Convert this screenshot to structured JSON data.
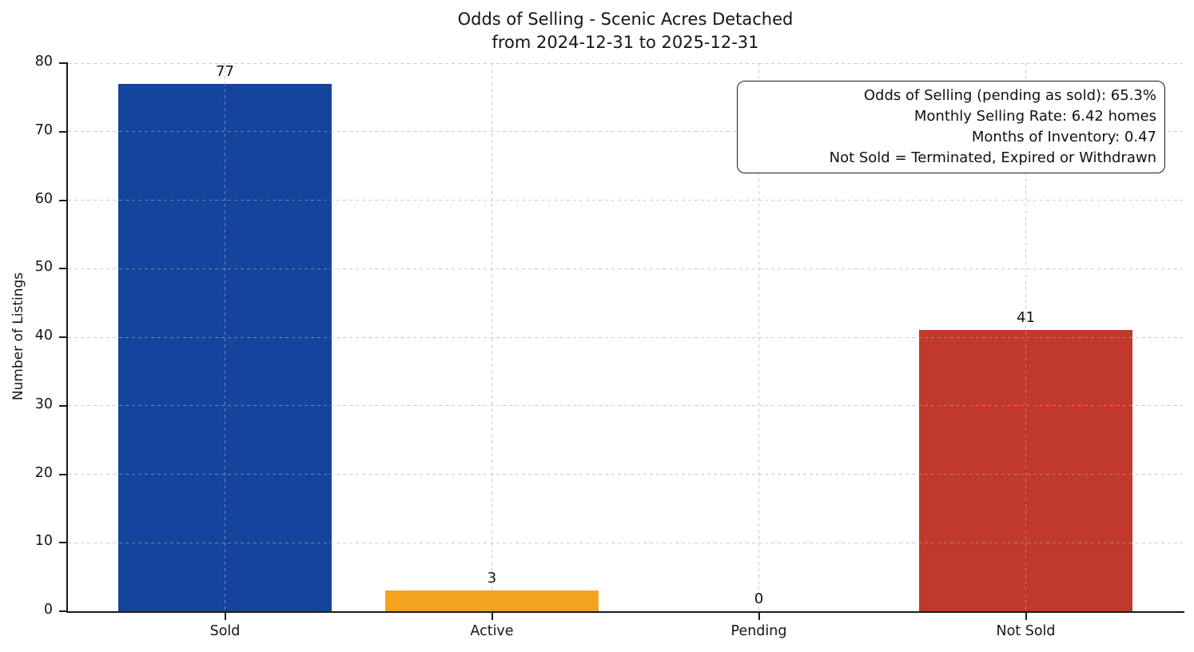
{
  "chart_data": {
    "type": "bar",
    "title": "Odds of Selling - Scenic Acres Detached",
    "subtitle": "from 2024-12-31 to 2025-12-31",
    "categories": [
      "Sold",
      "Active",
      "Pending",
      "Not Sold"
    ],
    "values": [
      77,
      3,
      0,
      41
    ],
    "value_labels": [
      "77",
      "3",
      "0",
      "41"
    ],
    "bar_colors": [
      "#14449c",
      "#f4a321",
      null,
      "#c0392b"
    ],
    "xlabel": "",
    "ylabel": "Number of Listings",
    "ylim": [
      0,
      80
    ],
    "yticks": [
      0,
      10,
      20,
      30,
      40,
      50,
      60,
      70,
      80
    ],
    "grid": "dashed gray, both axes, drawn above bars",
    "legend": "none"
  },
  "annotation": {
    "lines": [
      "Odds of Selling (pending as sold): 65.3%",
      "Monthly Selling Rate: 6.42 homes",
      "Months of Inventory: 0.47",
      "Not Sold = Terminated, Expired or Withdrawn"
    ]
  },
  "colors": {
    "sold_bar": "#14449c",
    "active_bar": "#f4a321",
    "not_sold_bar": "#c0392b",
    "spine": "#1b1b1b",
    "background": "#ffffff"
  }
}
